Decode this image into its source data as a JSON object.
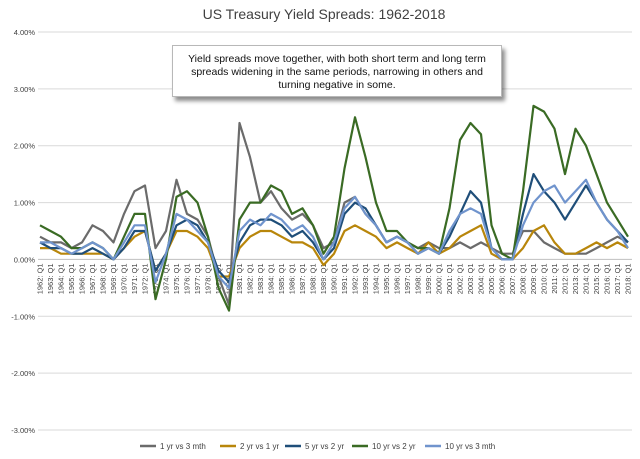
{
  "chart_data": {
    "type": "line",
    "title": "US Treasury Yield Spreads: 1962-2018",
    "annotation": "Yield spreads move together, with both short term and long term spreads widening in the same periods, narrowing in others and turning negative in some.",
    "xlabel": "",
    "ylabel": "",
    "ylim": [
      -3,
      4
    ],
    "y_ticks": [
      -3,
      -2,
      -1,
      0,
      1,
      2,
      3,
      4
    ],
    "y_tick_labels": [
      "-3.00%",
      "-2.00%",
      "-1.00%",
      "0.00%",
      "1.00%",
      "2.00%",
      "3.00%",
      "4.00%"
    ],
    "x_tick_labels": [
      "1962: Q1",
      "1963: Q1",
      "1964: Q1",
      "1965: Q1",
      "1966: Q1",
      "1967: Q1",
      "1968: Q1",
      "1969: Q1",
      "1970: Q1",
      "1971: Q1",
      "1972: Q1",
      "1973: Q1",
      "1974: Q1",
      "1975: Q1",
      "1976: Q1",
      "1977: Q1",
      "1978: Q1",
      "1979: Q1",
      "1980: Q1",
      "1981: Q1",
      "1982: Q1",
      "1983: Q1",
      "1984: Q1",
      "1985: Q1",
      "1986: Q1",
      "1987: Q1",
      "1988: Q1",
      "1989: Q1",
      "1990: Q1",
      "1991: Q1",
      "1992: Q1",
      "1993: Q1",
      "1994: Q1",
      "1995: Q1",
      "1996: Q1",
      "1997: Q1",
      "1998: Q1",
      "1999: Q1",
      "2000: Q1",
      "2001: Q1",
      "2002: Q1",
      "2003: Q1",
      "2004: Q1",
      "2005: Q1",
      "2006: Q1",
      "2007: Q1",
      "2008: Q1",
      "2009: Q1",
      "2010: Q1",
      "2011: Q1",
      "2012: Q1",
      "2013: Q1",
      "2014: Q1",
      "2015: Q1",
      "2016: Q1",
      "2017: Q1",
      "2018: Q1"
    ],
    "x": [
      1962,
      1963,
      1964,
      1965,
      1966,
      1967,
      1968,
      1969,
      1970,
      1971,
      1972,
      1973,
      1974,
      1975,
      1976,
      1977,
      1978,
      1979,
      1980,
      1981,
      1982,
      1983,
      1984,
      1985,
      1986,
      1987,
      1988,
      1989,
      1990,
      1991,
      1992,
      1993,
      1994,
      1995,
      1996,
      1997,
      1998,
      1999,
      2000,
      2001,
      2002,
      2003,
      2004,
      2005,
      2006,
      2007,
      2008,
      2009,
      2010,
      2011,
      2012,
      2013,
      2014,
      2015,
      2016,
      2017,
      2018
    ],
    "legend_position": "bottom",
    "series": [
      {
        "name": "1 yr vs 3 mth",
        "color": "#6b6b6b",
        "values": [
          0.4,
          0.3,
          0.3,
          0.2,
          0.3,
          0.6,
          0.5,
          0.3,
          0.8,
          1.2,
          1.3,
          0.2,
          0.5,
          1.4,
          0.8,
          0.7,
          0.4,
          -0.3,
          -0.8,
          2.4,
          1.8,
          1.0,
          1.2,
          0.9,
          0.7,
          0.8,
          0.6,
          0.2,
          0.3,
          1.0,
          1.1,
          0.8,
          0.6,
          0.3,
          0.4,
          0.3,
          0.2,
          0.3,
          0.2,
          0.2,
          0.3,
          0.2,
          0.3,
          0.2,
          0.1,
          0.1,
          0.5,
          0.5,
          0.3,
          0.2,
          0.1,
          0.1,
          0.1,
          0.2,
          0.3,
          0.4,
          0.3
        ]
      },
      {
        "name": "2 yr vs 1 yr",
        "color": "#b8860b",
        "values": [
          0.2,
          0.2,
          0.1,
          0.1,
          0.1,
          0.1,
          0.1,
          0.0,
          0.2,
          0.4,
          0.5,
          -0.2,
          0.1,
          0.5,
          0.5,
          0.4,
          0.2,
          -0.3,
          -0.3,
          0.2,
          0.4,
          0.5,
          0.5,
          0.4,
          0.3,
          0.3,
          0.2,
          -0.1,
          0.1,
          0.5,
          0.6,
          0.5,
          0.4,
          0.2,
          0.3,
          0.2,
          0.1,
          0.3,
          0.1,
          0.2,
          0.4,
          0.5,
          0.6,
          0.1,
          0.0,
          0.0,
          0.2,
          0.5,
          0.6,
          0.3,
          0.1,
          0.1,
          0.2,
          0.3,
          0.2,
          0.3,
          0.2
        ]
      },
      {
        "name": "5 yr vs 2 yr",
        "color": "#1f4e79",
        "values": [
          0.3,
          0.2,
          0.2,
          0.1,
          0.1,
          0.2,
          0.1,
          0.0,
          0.2,
          0.5,
          0.5,
          -0.2,
          0.1,
          0.6,
          0.7,
          0.6,
          0.3,
          -0.2,
          -0.4,
          0.3,
          0.6,
          0.7,
          0.7,
          0.6,
          0.4,
          0.5,
          0.3,
          0.0,
          0.2,
          0.8,
          1.0,
          0.9,
          0.6,
          0.3,
          0.4,
          0.3,
          0.1,
          0.2,
          0.1,
          0.4,
          0.8,
          1.2,
          1.0,
          0.2,
          0.0,
          0.0,
          0.8,
          1.5,
          1.2,
          1.0,
          0.7,
          1.0,
          1.3,
          1.0,
          0.7,
          0.5,
          0.3
        ]
      },
      {
        "name": "10 yr vs 2 yr",
        "color": "#3a6b24",
        "values": [
          0.6,
          0.5,
          0.4,
          0.2,
          0.2,
          0.3,
          0.2,
          0.0,
          0.4,
          0.8,
          0.8,
          -0.7,
          0.0,
          1.1,
          1.2,
          1.0,
          0.4,
          -0.5,
          -0.9,
          0.7,
          1.0,
          1.0,
          1.3,
          1.2,
          0.8,
          0.9,
          0.6,
          0.1,
          0.4,
          1.6,
          2.5,
          1.8,
          1.0,
          0.5,
          0.5,
          0.3,
          0.2,
          0.2,
          0.1,
          0.9,
          2.1,
          2.4,
          2.2,
          0.6,
          0.1,
          0.0,
          1.2,
          2.7,
          2.6,
          2.3,
          1.5,
          2.3,
          2.0,
          1.5,
          1.0,
          0.7,
          0.4
        ]
      },
      {
        "name": "10 yr vs 3 mth",
        "color": "#7094cd",
        "values": [
          0.3,
          0.3,
          0.2,
          0.1,
          0.2,
          0.3,
          0.2,
          0.0,
          0.3,
          0.6,
          0.6,
          -0.4,
          0.1,
          0.8,
          0.7,
          0.5,
          0.3,
          -0.3,
          -0.5,
          0.5,
          0.7,
          0.6,
          0.8,
          0.7,
          0.5,
          0.6,
          0.4,
          0.0,
          0.3,
          0.9,
          1.1,
          0.8,
          0.6,
          0.3,
          0.4,
          0.3,
          0.1,
          0.2,
          0.1,
          0.5,
          0.8,
          0.9,
          0.8,
          0.2,
          0.0,
          0.0,
          0.6,
          1.0,
          1.2,
          1.3,
          1.0,
          1.2,
          1.4,
          1.0,
          0.7,
          0.5,
          0.2
        ]
      }
    ]
  }
}
